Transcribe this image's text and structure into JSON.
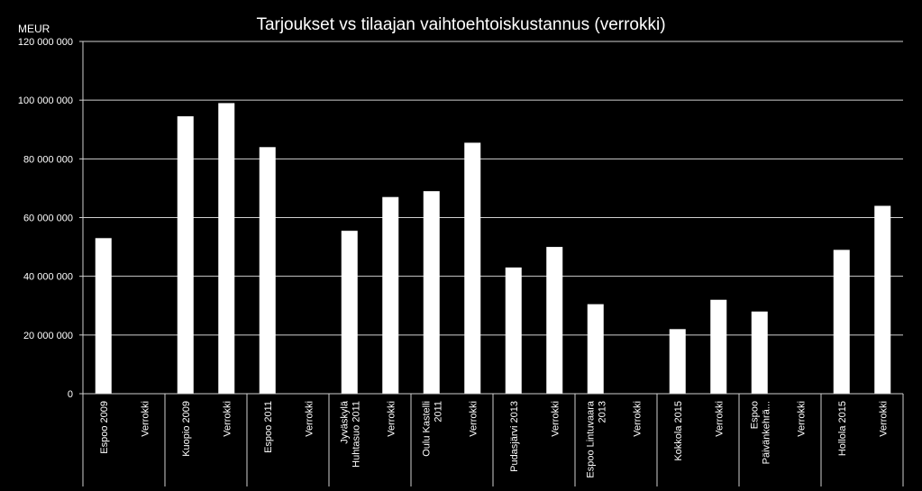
{
  "chart_data": {
    "type": "bar",
    "title": "Tarjoukset vs tilaajan vaihtoehtoiskustannus (verrokki)",
    "ylabel": "MEUR",
    "xlabel": "",
    "ylim": [
      0,
      120000000
    ],
    "y_ticks": [
      {
        "value": 0,
        "label": "0"
      },
      {
        "value": 20000000,
        "label": "20 000 000"
      },
      {
        "value": 40000000,
        "label": "40 000 000"
      },
      {
        "value": 60000000,
        "label": "60 000 000"
      },
      {
        "value": 80000000,
        "label": "80 000 000"
      },
      {
        "value": 100000000,
        "label": "100 000 000"
      },
      {
        "value": 120000000,
        "label": "120 000 000"
      }
    ],
    "grid": true,
    "legend": "none",
    "bar_color": "#ffffff",
    "groups": [
      {
        "bars": [
          {
            "label": [
              "Espoo 2009"
            ],
            "value": 53000000
          },
          {
            "label": [
              "Verrokki"
            ],
            "value": 0
          }
        ]
      },
      {
        "bars": [
          {
            "label": [
              "Kuopio 2009"
            ],
            "value": 94500000
          },
          {
            "label": [
              "Verrokki"
            ],
            "value": 99000000
          }
        ]
      },
      {
        "bars": [
          {
            "label": [
              "Espoo 2011"
            ],
            "value": 84000000
          },
          {
            "label": [
              "Verrokki"
            ],
            "value": 0
          }
        ]
      },
      {
        "bars": [
          {
            "label": [
              "Jyväskylä",
              "Huhtasuo 2011"
            ],
            "value": 55500000
          },
          {
            "label": [
              "Verrokki"
            ],
            "value": 67000000
          }
        ]
      },
      {
        "bars": [
          {
            "label": [
              "Oulu Kastelli",
              "2011"
            ],
            "value": 69000000
          },
          {
            "label": [
              "Verrokki"
            ],
            "value": 85500000
          }
        ]
      },
      {
        "bars": [
          {
            "label": [
              "Pudasjärvi 2013"
            ],
            "value": 43000000
          },
          {
            "label": [
              "Verrokki"
            ],
            "value": 50000000
          }
        ]
      },
      {
        "bars": [
          {
            "label": [
              "Espoo Lintuvaara",
              "2013"
            ],
            "value": 30500000
          },
          {
            "label": [
              "Verrokki"
            ],
            "value": 0
          }
        ]
      },
      {
        "bars": [
          {
            "label": [
              "Kokkola 2015"
            ],
            "value": 22000000
          },
          {
            "label": [
              "Verrokki"
            ],
            "value": 32000000
          }
        ]
      },
      {
        "bars": [
          {
            "label": [
              "Espoo",
              "Päivänkehrä..."
            ],
            "value": 28000000
          },
          {
            "label": [
              "Verrokki"
            ],
            "value": 0
          }
        ]
      },
      {
        "bars": [
          {
            "label": [
              "Hollola 2015"
            ],
            "value": 49000000
          },
          {
            "label": [
              "Verrokki"
            ],
            "value": 64000000
          }
        ]
      }
    ]
  }
}
